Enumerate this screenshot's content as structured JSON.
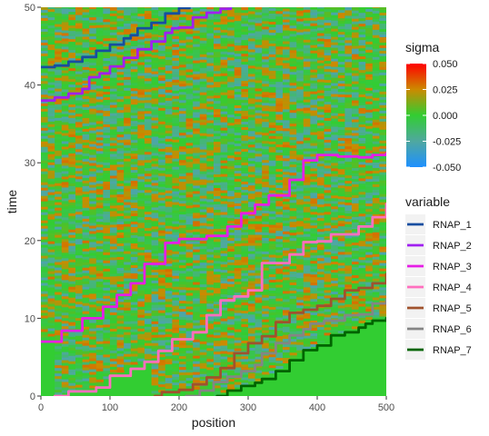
{
  "chart_data": {
    "type": "heatmap",
    "title": "",
    "xlabel": "position",
    "ylabel": "time",
    "xlim": [
      0,
      500
    ],
    "ylim": [
      0,
      50
    ],
    "x_ticks": [
      0,
      100,
      200,
      300,
      400,
      500
    ],
    "y_ticks": [
      0,
      10,
      20,
      30,
      40,
      50
    ],
    "x_tick_labels": [
      "0",
      "100",
      "200",
      "300",
      "400",
      "500"
    ],
    "y_tick_labels": [
      "0",
      "10",
      "20",
      "30",
      "40",
      "50"
    ],
    "grid": false,
    "colorbar": {
      "title": "sigma",
      "range": [
        -0.05,
        0.05
      ],
      "ticks": [
        0.05,
        0.025,
        0.0,
        -0.025,
        -0.05
      ],
      "tick_labels": [
        "0.050",
        "0.025",
        "0.000",
        "-0.025",
        "-0.050"
      ],
      "colors": [
        {
          "value": 0.05,
          "color": "#ff0000"
        },
        {
          "value": 0.025,
          "color": "#cc8a00"
        },
        {
          "value": 0.0,
          "color": "#32cd32"
        },
        {
          "value": -0.025,
          "color": "#4fa8a0"
        },
        {
          "value": -0.05,
          "color": "#1e90ff"
        }
      ],
      "placement": "right"
    },
    "background_sigma": 0.0,
    "legend_title": "variable",
    "legend_placement": "right",
    "series": [
      {
        "name": "RNAP_1",
        "color": "#174ea0",
        "points": [
          [
            0,
            42.3
          ],
          [
            20,
            42.5
          ],
          [
            40,
            43.0
          ],
          [
            60,
            43.6
          ],
          [
            80,
            44.4
          ],
          [
            100,
            45.2
          ],
          [
            120,
            46.0
          ],
          [
            130,
            46.4
          ],
          [
            140,
            47.3
          ],
          [
            160,
            48.0
          ],
          [
            180,
            49.2
          ],
          [
            200,
            49.9
          ],
          [
            215,
            50
          ]
        ]
      },
      {
        "name": "RNAP_2",
        "color": "#a020f0",
        "points": [
          [
            0,
            38.0
          ],
          [
            20,
            38.4
          ],
          [
            40,
            38.9
          ],
          [
            60,
            39.5
          ],
          [
            70,
            41.0
          ],
          [
            85,
            41.5
          ],
          [
            100,
            42.4
          ],
          [
            120,
            43.5
          ],
          [
            140,
            44.6
          ],
          [
            160,
            45.6
          ],
          [
            180,
            46.7
          ],
          [
            190,
            47.3
          ],
          [
            200,
            47.4
          ],
          [
            220,
            48.7
          ],
          [
            240,
            49.3
          ],
          [
            260,
            49.8
          ],
          [
            275,
            50
          ]
        ]
      },
      {
        "name": "RNAP_3",
        "color": "#e61ee6",
        "points": [
          [
            0,
            7.0
          ],
          [
            30,
            8.4
          ],
          [
            60,
            10.0
          ],
          [
            90,
            11.5
          ],
          [
            110,
            13.0
          ],
          [
            130,
            14.5
          ],
          [
            150,
            17.0
          ],
          [
            180,
            19.7
          ],
          [
            200,
            20.2
          ],
          [
            240,
            20.6
          ],
          [
            270,
            21.8
          ],
          [
            290,
            23.5
          ],
          [
            310,
            24.6
          ],
          [
            330,
            25.8
          ],
          [
            360,
            27.8
          ],
          [
            380,
            30.3
          ],
          [
            400,
            31.0
          ],
          [
            430,
            30.8
          ],
          [
            460,
            30.7
          ],
          [
            480,
            31.0
          ],
          [
            500,
            31.2
          ]
        ]
      },
      {
        "name": "RNAP_4",
        "color": "#ff6fbf",
        "points": [
          [
            20,
            0
          ],
          [
            40,
            0.6
          ],
          [
            80,
            1.1
          ],
          [
            100,
            2.6
          ],
          [
            130,
            3.5
          ],
          [
            150,
            4.4
          ],
          [
            170,
            5.8
          ],
          [
            190,
            7.3
          ],
          [
            220,
            8.2
          ],
          [
            240,
            10.4
          ],
          [
            260,
            12.3
          ],
          [
            280,
            12.8
          ],
          [
            300,
            13.6
          ],
          [
            320,
            17.1
          ],
          [
            360,
            18.2
          ],
          [
            380,
            19.8
          ],
          [
            400,
            19.9
          ],
          [
            420,
            20.8
          ],
          [
            460,
            21.8
          ],
          [
            480,
            23.0
          ],
          [
            500,
            24.7
          ]
        ]
      },
      {
        "name": "RNAP_5",
        "color": "#a0522d",
        "points": [
          [
            165,
            0
          ],
          [
            175,
            0.5
          ],
          [
            200,
            0.8
          ],
          [
            220,
            1.5
          ],
          [
            240,
            2.4
          ],
          [
            260,
            3.6
          ],
          [
            280,
            5.5
          ],
          [
            300,
            6.8
          ],
          [
            320,
            7.7
          ],
          [
            340,
            9.5
          ],
          [
            360,
            10.7
          ],
          [
            380,
            11.1
          ],
          [
            400,
            11.6
          ],
          [
            420,
            12.5
          ],
          [
            440,
            13.6
          ],
          [
            460,
            13.9
          ],
          [
            480,
            14.5
          ],
          [
            500,
            15.7
          ]
        ]
      },
      {
        "name": "RNAP_6",
        "color": "#858585",
        "points": [
          [
            210,
            0
          ],
          [
            230,
            0.7
          ],
          [
            250,
            1.8
          ],
          [
            270,
            2.5
          ],
          [
            290,
            3.2
          ],
          [
            310,
            4.0
          ],
          [
            320,
            5.5
          ],
          [
            340,
            6.8
          ],
          [
            360,
            7.8
          ],
          [
            380,
            8.6
          ],
          [
            390,
            9.3
          ],
          [
            410,
            9.7
          ],
          [
            440,
            10.4
          ],
          [
            460,
            10.5
          ],
          [
            480,
            11.9
          ],
          [
            500,
            12.4
          ]
        ]
      },
      {
        "name": "RNAP_7",
        "color": "#006400",
        "points": [
          [
            255,
            0
          ],
          [
            270,
            0.7
          ],
          [
            290,
            1.3
          ],
          [
            310,
            1.7
          ],
          [
            320,
            2.2
          ],
          [
            340,
            3.2
          ],
          [
            360,
            4.6
          ],
          [
            380,
            5.9
          ],
          [
            400,
            6.5
          ],
          [
            420,
            7.8
          ],
          [
            440,
            8.2
          ],
          [
            460,
            8.8
          ],
          [
            470,
            9.3
          ],
          [
            480,
            9.7
          ],
          [
            500,
            10.0
          ]
        ]
      }
    ]
  }
}
